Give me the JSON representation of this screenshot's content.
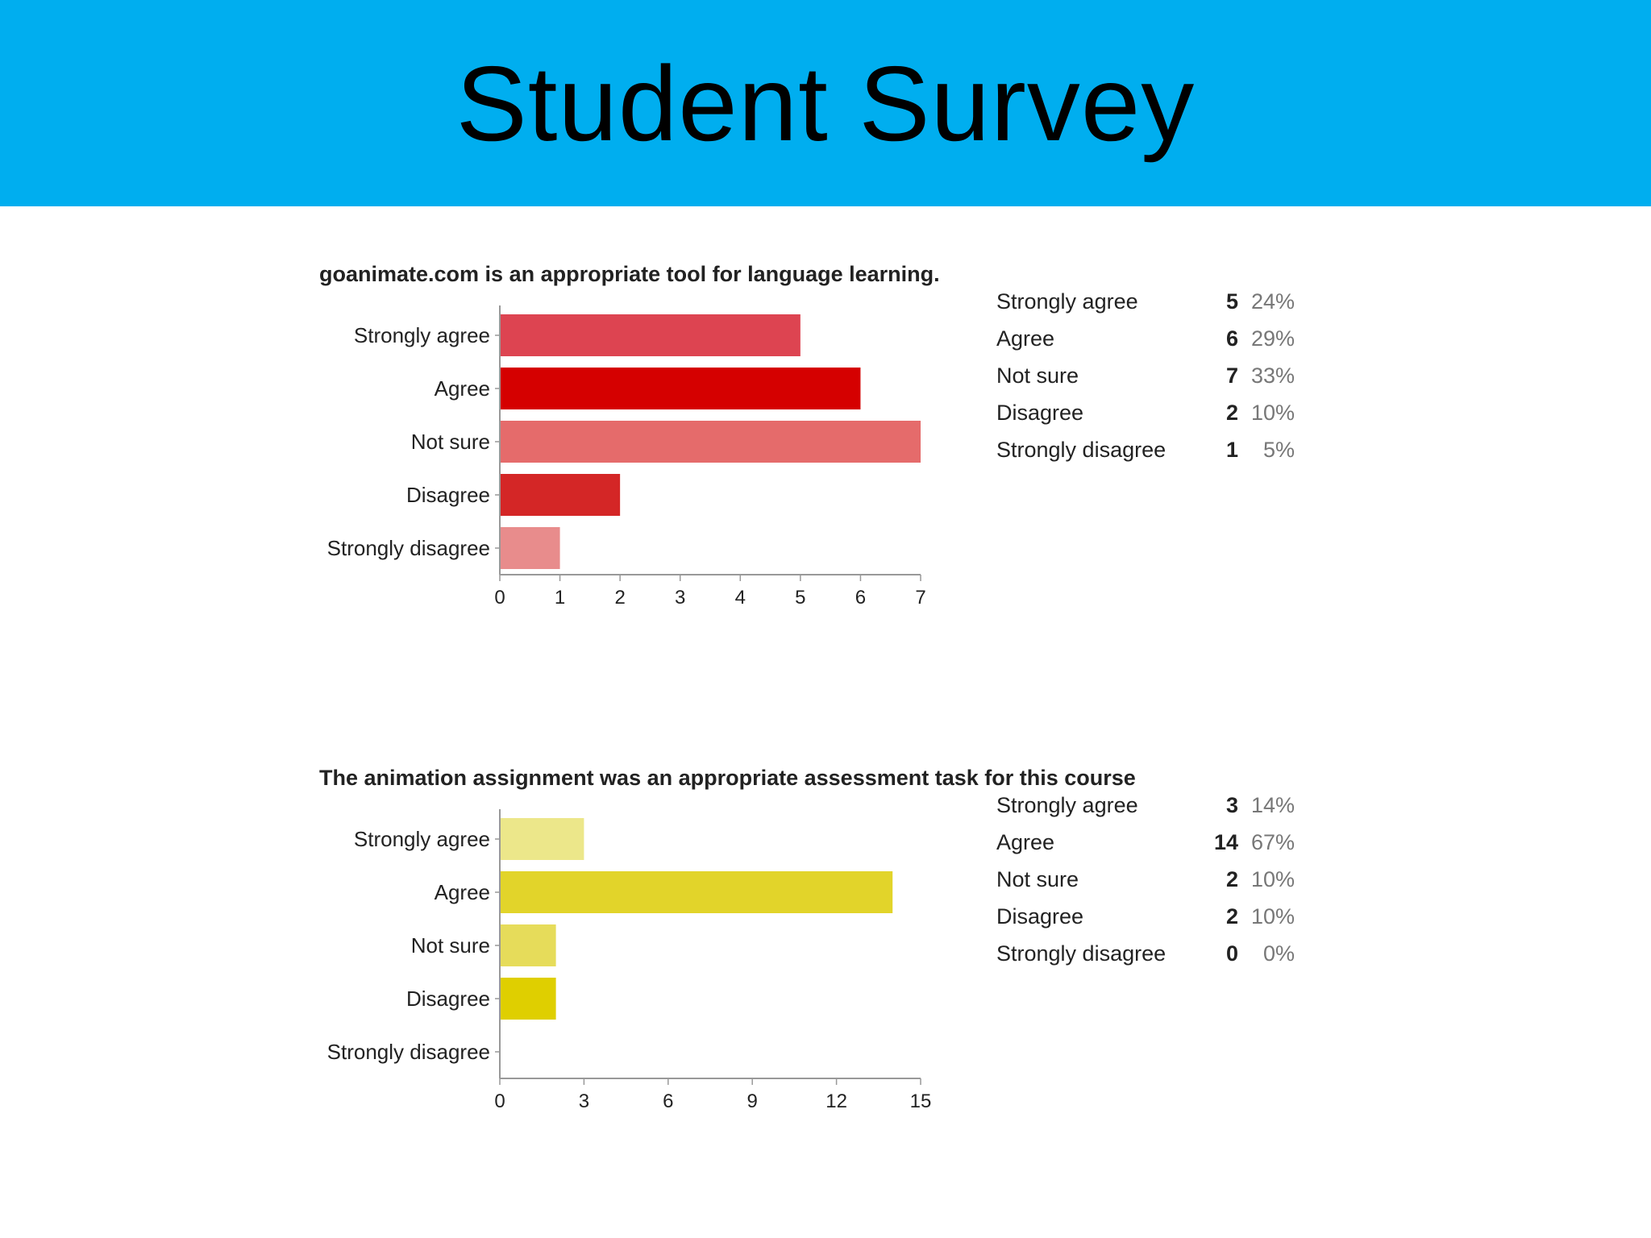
{
  "slide": {
    "title": "Student Survey"
  },
  "colors": {
    "header": "#00aeef"
  },
  "chart_data": [
    {
      "type": "bar",
      "orientation": "horizontal",
      "title": "goanimate.com is an appropriate tool for language learning.",
      "categories": [
        "Strongly agree",
        "Agree",
        "Not sure",
        "Disagree",
        "Strongly disagree"
      ],
      "values": [
        5,
        6,
        7,
        2,
        1
      ],
      "percents": [
        "24%",
        "29%",
        "33%",
        "10%",
        "5%"
      ],
      "colors": [
        "#dd4451",
        "#d50000",
        "#e56b6b",
        "#d42626",
        "#e88c8c"
      ],
      "xlim": [
        0,
        7
      ],
      "xticks": [
        "0",
        "1",
        "2",
        "3",
        "4",
        "5",
        "6",
        "7"
      ]
    },
    {
      "type": "bar",
      "orientation": "horizontal",
      "title": "The animation assignment was an appropriate assessment task for this course",
      "categories": [
        "Strongly agree",
        "Agree",
        "Not sure",
        "Disagree",
        "Strongly disagree"
      ],
      "values": [
        3,
        14,
        2,
        2,
        0
      ],
      "percents": [
        "14%",
        "67%",
        "10%",
        "10%",
        "0%"
      ],
      "colors": [
        "#ece78a",
        "#e2d42a",
        "#e6dc5a",
        "#dfcf00",
        "#e6dc5a"
      ],
      "xlim": [
        0,
        15
      ],
      "xticks": [
        "0",
        "3",
        "6",
        "9",
        "12",
        "15"
      ]
    }
  ]
}
